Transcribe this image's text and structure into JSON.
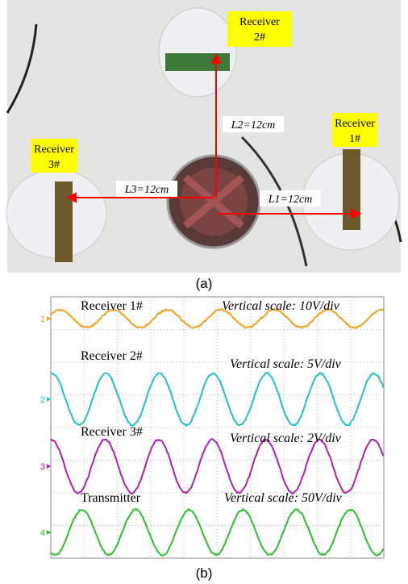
{
  "panel_a": {
    "receiver_2": [
      "Receiver",
      "2#"
    ],
    "receiver_1": [
      "Receiver",
      "1#"
    ],
    "receiver_3": [
      "Receiver",
      "3#"
    ],
    "l2": "L2=12cm",
    "l3": "L3=12cm",
    "l1": "L1=12cm",
    "caption": "(a)"
  },
  "panel_b": {
    "traces": [
      {
        "channel": "1",
        "name": "Receiver 1#",
        "scale": "Vertical scale: 10V/div"
      },
      {
        "channel": "2",
        "name": "Receiver 2#",
        "scale": "Vertical scale: 5V/div"
      },
      {
        "channel": "3",
        "name": "Receiver 3#",
        "scale": "Vertical scale: 2V/div"
      },
      {
        "channel": "4",
        "name": "Transmitter",
        "scale": "Vertical scale: 50V/div"
      }
    ],
    "caption": "(b)"
  }
}
